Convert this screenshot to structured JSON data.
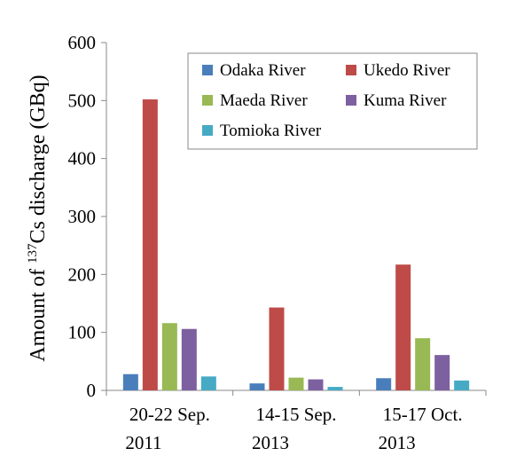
{
  "chart_data": {
    "type": "bar",
    "title": "",
    "xlabel": "",
    "ylabel": {
      "prefix": "Amount of ",
      "superscript": "137",
      "suffix": "Cs discharge (GBq)"
    },
    "ylim": [
      0,
      600
    ],
    "yticks": [
      0,
      100,
      200,
      300,
      400,
      500,
      600
    ],
    "grid": false,
    "legend_position": "top-right",
    "categories": [
      {
        "line1": "20-22  Sep.",
        "line2": "2011"
      },
      {
        "line1": "14-15  Sep.",
        "line2": "2013"
      },
      {
        "line1": "15-17  Oct.",
        "line2": "2013"
      }
    ],
    "series": [
      {
        "name": "Odaka River",
        "color": "#4a7ebb",
        "values": [
          28,
          12,
          21
        ]
      },
      {
        "name": "Ukedo River",
        "color": "#be4b48",
        "values": [
          502,
          143,
          217
        ]
      },
      {
        "name": "Maeda River",
        "color": "#98b954",
        "values": [
          116,
          22,
          90
        ]
      },
      {
        "name": "Kuma River",
        "color": "#7d60a0",
        "values": [
          106,
          19,
          61
        ]
      },
      {
        "name": "Tomioka River",
        "color": "#46aac5",
        "values": [
          24,
          6,
          17
        ]
      }
    ]
  }
}
